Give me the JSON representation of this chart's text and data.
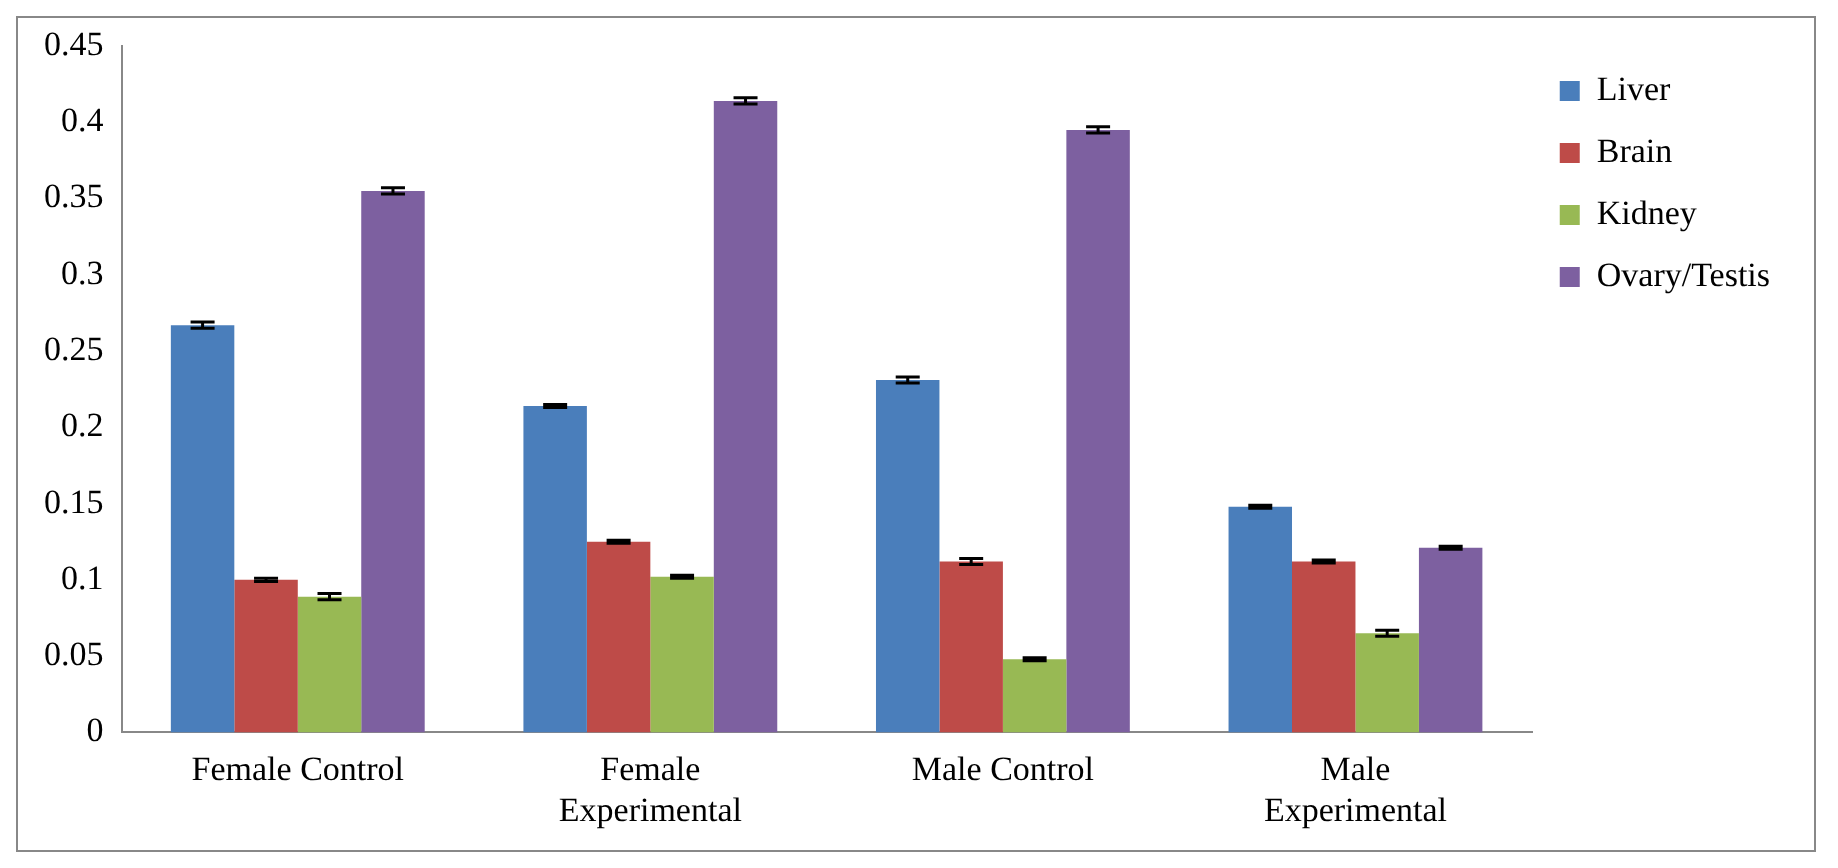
{
  "chart_data": {
    "type": "bar",
    "categories": [
      "Female Control",
      "Female Experimental",
      "Male Control",
      "Male Experimental"
    ],
    "series": [
      {
        "name": "Liver",
        "color": "#4a7ebb",
        "values": [
          0.267,
          0.214,
          0.231,
          0.148
        ],
        "errors": [
          0.002,
          0.001,
          0.002,
          0.001
        ]
      },
      {
        "name": "Brain",
        "color": "#be4b48",
        "values": [
          0.1,
          0.125,
          0.112,
          0.112
        ],
        "errors": [
          0.001,
          0.001,
          0.002,
          0.001
        ]
      },
      {
        "name": "Kidney",
        "color": "#98b954",
        "values": [
          0.089,
          0.102,
          0.048,
          0.065
        ],
        "errors": [
          0.002,
          0.001,
          0.001,
          0.002
        ]
      },
      {
        "name": "Ovary/Testis",
        "color": "#7d60a0",
        "values": [
          0.355,
          0.414,
          0.395,
          0.121
        ],
        "errors": [
          0.002,
          0.002,
          0.002,
          0.001
        ]
      }
    ],
    "ylim": [
      0,
      0.45
    ],
    "yticks": [
      0,
      0.05,
      0.1,
      0.15,
      0.2,
      0.25,
      0.3,
      0.35,
      0.4,
      0.45
    ],
    "grid": false,
    "legend": "top right"
  }
}
